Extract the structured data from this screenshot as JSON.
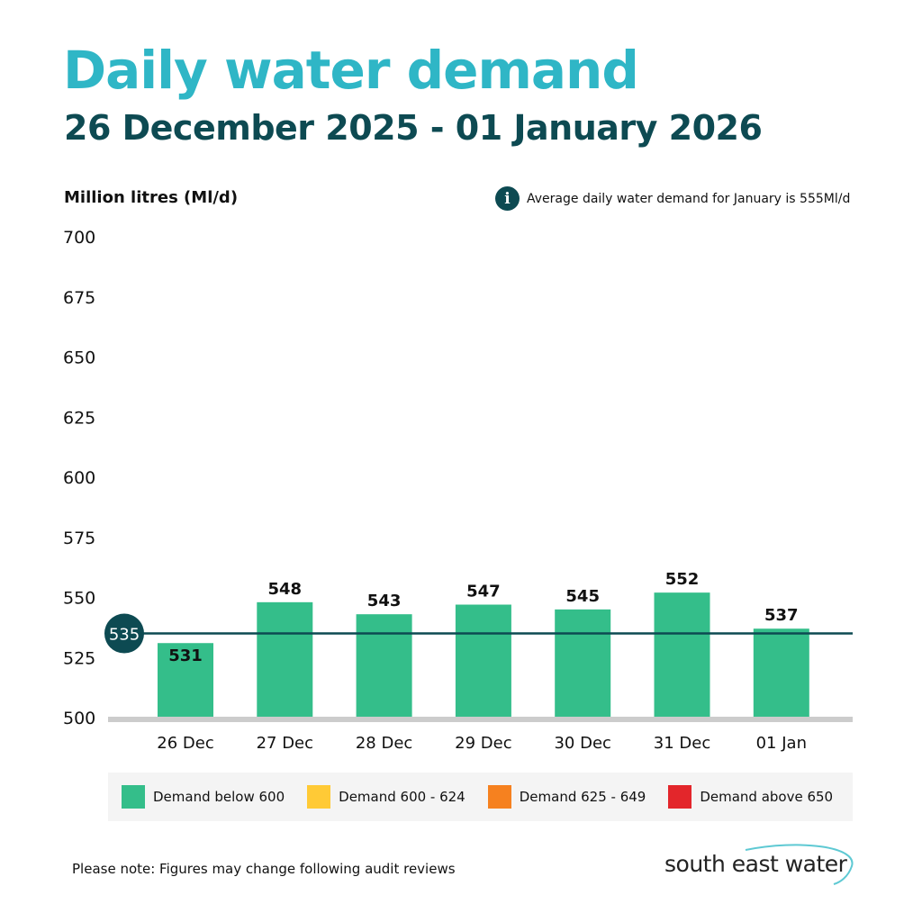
{
  "header": {
    "title": "Daily water demand",
    "subtitle": "26 December 2025 - 01 January 2026"
  },
  "info_note": {
    "icon": "info-icon",
    "icon_glyph": "i",
    "text": "Average daily water demand for January  is 555Ml/d"
  },
  "chart_data": {
    "type": "bar",
    "title": "Daily water demand",
    "ylabel": "Million litres (Ml/d)",
    "ylim": [
      500,
      700
    ],
    "yticks": [
      "500",
      "525",
      "550",
      "575",
      "600",
      "625",
      "650",
      "675",
      "700"
    ],
    "grid": false,
    "categories": [
      "26 Dec",
      "27 Dec",
      "28 Dec",
      "29 Dec",
      "30 Dec",
      "31 Dec",
      "01 Jan"
    ],
    "values": [
      531,
      548,
      543,
      547,
      545,
      552,
      537
    ],
    "data_labels": [
      "531",
      "548",
      "543",
      "547",
      "545",
      "552",
      "537"
    ],
    "reference_line": {
      "value": 535,
      "label": "535",
      "color": "#0d4a52"
    },
    "bar_color": "#34be8a",
    "legend_position": "bottom",
    "legend": [
      {
        "label": "Demand below 600",
        "color": "#34be8a"
      },
      {
        "label": "Demand 600 - 624",
        "color": "#ffca36"
      },
      {
        "label": "Demand 625 - 649",
        "color": "#f6811f"
      },
      {
        "label": "Demand above 650",
        "color": "#e3262b"
      }
    ]
  },
  "footer": {
    "note": "Please note: Figures may change following audit reviews",
    "logo_text": "south east water"
  }
}
